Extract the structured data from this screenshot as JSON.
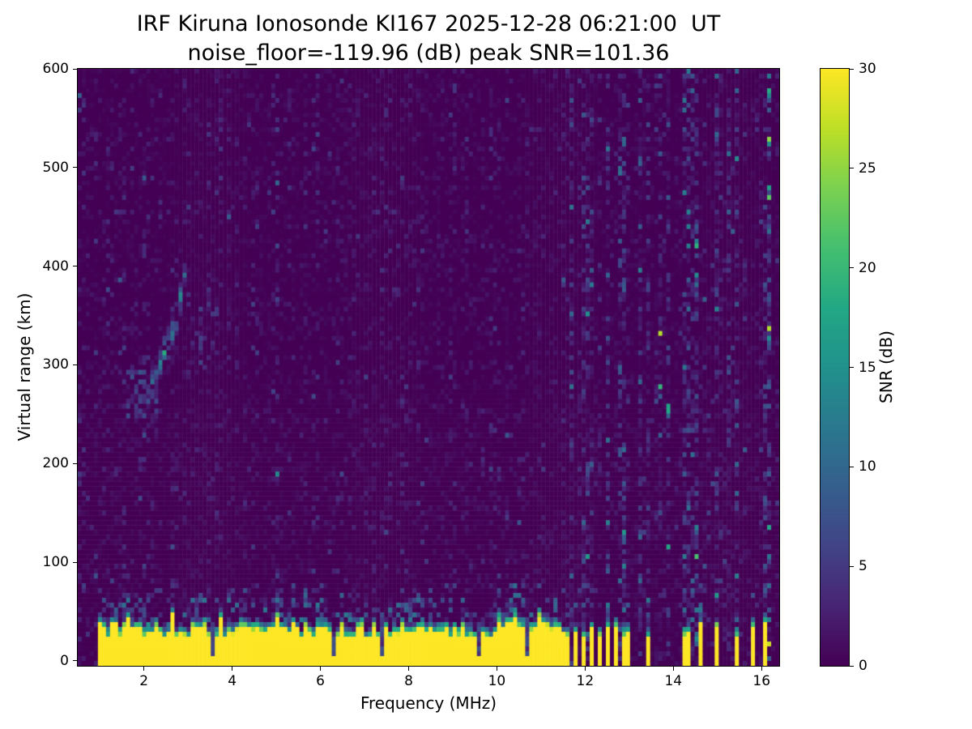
{
  "figure": {
    "background": "#ffffff",
    "title": "IRF Kiruna Ionosonde KI167 2025-12-28 06:21:00  UT",
    "subtitle": "noise_floor=-119.96 (dB) peak SNR=101.36"
  },
  "chart_data": {
    "type": "heatmap",
    "title": "IRF Kiruna Ionosonde KI167 2025-12-28 06:21:00  UT",
    "subtitle": "noise_floor=-119.96 (dB) peak SNR=101.36",
    "xlabel": "Frequency (MHz)",
    "ylabel": "Virtual range (km)",
    "x_range_mhz": [
      0.5,
      16.4
    ],
    "y_range_km": [
      -5,
      600
    ],
    "x_ticks": [
      2,
      4,
      6,
      8,
      10,
      12,
      14,
      16
    ],
    "y_ticks": [
      0,
      100,
      200,
      300,
      400,
      500,
      600
    ],
    "grid": false,
    "colorbar": {
      "label": "SNR (dB)",
      "min": 0,
      "max": 30,
      "ticks": [
        0,
        5,
        10,
        15,
        20,
        25,
        30
      ],
      "position": "right"
    },
    "colormap": {
      "name": "viridis",
      "stops": [
        [
          0.0,
          "#440154"
        ],
        [
          0.1,
          "#482475"
        ],
        [
          0.2,
          "#414487"
        ],
        [
          0.3,
          "#355f8d"
        ],
        [
          0.4,
          "#2a788e"
        ],
        [
          0.5,
          "#21918c"
        ],
        [
          0.6,
          "#22a884"
        ],
        [
          0.7,
          "#44bf70"
        ],
        [
          0.8,
          "#7ad151"
        ],
        [
          0.9,
          "#bddf26"
        ],
        [
          1.0,
          "#fde725"
        ]
      ]
    },
    "features": {
      "noise_floor_db": -119.96,
      "peak_snr_db": 101.36,
      "background_snr_db": 0,
      "ground_band": {
        "freq_start_mhz": 0.95,
        "freq_end_mhz": 11.55,
        "top_km_mean": 30,
        "snr_db": 30
      },
      "ground_notches_mhz": [
        3.55,
        6.3,
        7.4,
        9.6,
        10.7
      ],
      "ground_band_stripes_mhz": [
        11.62,
        11.78,
        11.95,
        12.12,
        12.3,
        12.48,
        12.67,
        12.85,
        13.0,
        13.45,
        14.3,
        14.6,
        15.0,
        15.45,
        15.8,
        16.1
      ],
      "rfi_columns_mhz": [
        11.7,
        12.1,
        12.5,
        12.85,
        13.45,
        13.9,
        14.3,
        15.0,
        15.45,
        16.1
      ],
      "echo_trace": {
        "points_mhz_km": [
          [
            1.75,
            250
          ],
          [
            2.0,
            263
          ],
          [
            2.2,
            283
          ],
          [
            2.4,
            305
          ],
          [
            2.6,
            327
          ],
          [
            2.75,
            348
          ],
          [
            2.85,
            372
          ],
          [
            2.95,
            400
          ],
          [
            3.0,
            418
          ]
        ],
        "peak_snr_db": 16
      },
      "seed": 167
    }
  }
}
